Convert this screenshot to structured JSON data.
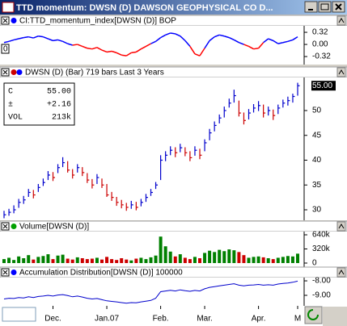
{
  "window": {
    "title": "TTD momentum: DWSN (D) DAWSON GEOPHYSICAL CO D..."
  },
  "info_box": {
    "rows": [
      [
        "C",
        "55.00"
      ],
      [
        "±",
        "+2.16"
      ],
      [
        "VOL",
        "213k"
      ]
    ]
  },
  "x_axis": {
    "categories": [
      null,
      null,
      null,
      null,
      null,
      null,
      null,
      null,
      null,
      null,
      "Dec.",
      null,
      null,
      null,
      null,
      null,
      null,
      null,
      null,
      null,
      null,
      "Jan.07",
      null,
      null,
      null,
      null,
      null,
      null,
      null,
      null,
      null,
      null,
      "Feb.",
      null,
      null,
      null,
      null,
      null,
      null,
      null,
      null,
      "Mar.",
      null,
      null,
      null,
      null,
      null,
      null,
      null,
      null,
      null,
      null,
      "Apr.",
      null,
      null,
      null,
      null,
      null,
      null,
      null,
      "M"
    ]
  },
  "chart_data": [
    {
      "type": "line",
      "title": "CI:TTD_momentum_index[DWSN (D)] BOP",
      "left_label": "0",
      "up_color": "#0000ff",
      "down_color": "#ff0000",
      "values": [
        0.05,
        0.08,
        0.12,
        0.15,
        0.18,
        0.2,
        0.17,
        0.22,
        0.2,
        0.15,
        0.1,
        0.12,
        0.08,
        0.02,
        -0.02,
        0.0,
        -0.05,
        -0.1,
        -0.12,
        -0.08,
        -0.15,
        -0.2,
        -0.18,
        -0.22,
        -0.28,
        -0.3,
        -0.22,
        -0.2,
        -0.12,
        -0.05,
        0.02,
        0.08,
        0.18,
        0.25,
        0.3,
        0.28,
        0.22,
        0.1,
        -0.05,
        -0.25,
        -0.3,
        -0.1,
        0.1,
        0.2,
        0.25,
        0.22,
        0.18,
        0.12,
        0.05,
        0.0,
        -0.05,
        -0.12,
        -0.1,
        0.05,
        0.15,
        0.1,
        0.02,
        0.05,
        0.08,
        0.12,
        0.2
      ],
      "ylim": [
        -0.51,
        0.47
      ],
      "yticks": [
        0.32,
        {
          "value": 0,
          "label": "0.00"
        },
        -0.32
      ]
    },
    {
      "type": "ohlc",
      "title": "DWSN (D) (Bar) 719 bars  Last 3 Years",
      "up_color": "#0000cc",
      "down_color": "#cc0000",
      "high": [
        29.8,
        30.2,
        30.9,
        32.2,
        32.8,
        34.2,
        34.0,
        35.2,
        36.3,
        37.8,
        37.6,
        39.2,
        40.6,
        39.8,
        38.2,
        39.2,
        38.6,
        37.4,
        36.2,
        37.2,
        36.3,
        35.2,
        33.6,
        32.6,
        32.0,
        31.4,
        31.8,
        31.6,
        32.2,
        33.2,
        34.2,
        35.6,
        41.0,
        41.8,
        42.8,
        42.6,
        43.3,
        42.6,
        41.8,
        42.8,
        42.3,
        44.2,
        46.3,
        47.8,
        49.2,
        50.8,
        52.4,
        54.2,
        52.0,
        49.6,
        50.3,
        51.3,
        51.9,
        51.2,
        50.8,
        50.2,
        51.2,
        52.2,
        52.8,
        53.4,
        55.6
      ],
      "low": [
        28.3,
        28.8,
        29.3,
        30.4,
        31.2,
        32.6,
        32.3,
        33.6,
        34.8,
        36.0,
        35.8,
        37.4,
        38.6,
        37.5,
        36.3,
        37.5,
        36.8,
        35.4,
        34.3,
        35.2,
        34.4,
        32.6,
        31.8,
        30.8,
        30.3,
        29.8,
        30.2,
        29.9,
        30.7,
        31.6,
        32.8,
        34.2,
        36.0,
        39.8,
        41.0,
        40.6,
        41.6,
        40.8,
        39.8,
        40.9,
        40.2,
        41.8,
        44.0,
        45.8,
        47.4,
        48.6,
        50.6,
        51.6,
        48.8,
        47.2,
        48.2,
        49.6,
        49.9,
        48.6,
        49.0,
        48.1,
        49.3,
        50.6,
        51.0,
        51.6,
        53.0
      ],
      "close": [
        29.0,
        29.5,
        30.0,
        31.5,
        32.0,
        33.5,
        33.0,
        34.5,
        35.5,
        37.0,
        36.5,
        38.5,
        39.5,
        38.0,
        37.0,
        38.5,
        37.5,
        36.0,
        35.0,
        36.5,
        35.0,
        33.0,
        32.5,
        31.5,
        31.0,
        30.5,
        31.0,
        30.5,
        31.5,
        32.5,
        33.5,
        35.0,
        40.0,
        41.0,
        42.0,
        41.5,
        42.5,
        41.5,
        40.5,
        42.0,
        41.0,
        43.5,
        45.5,
        47.0,
        48.5,
        50.0,
        51.5,
        53.0,
        49.5,
        48.0,
        49.5,
        50.5,
        51.0,
        49.5,
        50.0,
        49.0,
        50.5,
        51.5,
        52.0,
        52.84,
        55.0
      ],
      "ylim": [
        28.05,
        56.5
      ],
      "yticks": [
        30,
        35,
        40,
        45,
        50
      ],
      "last_label": {
        "value": 55,
        "label": "55.00"
      }
    },
    {
      "type": "bar",
      "title": "Volume[DWSN (D)]",
      "up_color": "#008000",
      "down_color": "#cc0000",
      "values": [
        90000,
        120000,
        70000,
        150000,
        110000,
        180000,
        80000,
        140000,
        160000,
        200000,
        90000,
        170000,
        190000,
        100000,
        80000,
        130000,
        110000,
        90000,
        100000,
        120000,
        80000,
        140000,
        90000,
        70000,
        110000,
        80000,
        60000,
        100000,
        120000,
        90000,
        130000,
        170000,
        600000,
        380000,
        260000,
        150000,
        200000,
        120000,
        90000,
        140000,
        110000,
        230000,
        280000,
        250000,
        300000,
        270000,
        310000,
        290000,
        250000,
        180000,
        120000,
        140000,
        150000,
        130000,
        110000,
        90000,
        120000,
        140000,
        160000,
        150000,
        213000
      ],
      "ylim": [
        -73000,
        695000
      ],
      "yticks": [
        {
          "value": 640000,
          "label": "640k"
        },
        {
          "value": 320000,
          "label": "320k"
        },
        0
      ]
    },
    {
      "type": "line",
      "title": "Accumulation Distribution[DWSN (D)] 100000",
      "color": "#0000cc",
      "values": [
        -9.25,
        -9.2,
        -9.22,
        -9.15,
        -9.18,
        -9.1,
        -9.15,
        -9.08,
        -9.05,
        -9.0,
        -9.05,
        -8.98,
        -8.95,
        -9.02,
        -9.1,
        -9.05,
        -9.12,
        -9.2,
        -9.25,
        -9.22,
        -9.3,
        -9.38,
        -9.42,
        -9.45,
        -9.5,
        -9.55,
        -9.5,
        -9.52,
        -9.45,
        -9.4,
        -9.35,
        -9.2,
        -8.75,
        -8.7,
        -8.65,
        -8.7,
        -8.62,
        -8.68,
        -8.72,
        -8.66,
        -8.7,
        -8.55,
        -8.45,
        -8.4,
        -8.35,
        -8.3,
        -8.25,
        -8.2,
        -8.3,
        -8.35,
        -8.3,
        -8.28,
        -8.25,
        -8.3,
        -8.27,
        -8.3,
        -8.22,
        -8.18,
        -8.15,
        -8.1,
        -8.02
      ],
      "ylim": [
        -9.67,
        -7.83
      ],
      "yticks": [
        {
          "value": -8,
          "label": "-8.00"
        },
        {
          "value": -9,
          "label": "-9.00"
        }
      ]
    }
  ]
}
